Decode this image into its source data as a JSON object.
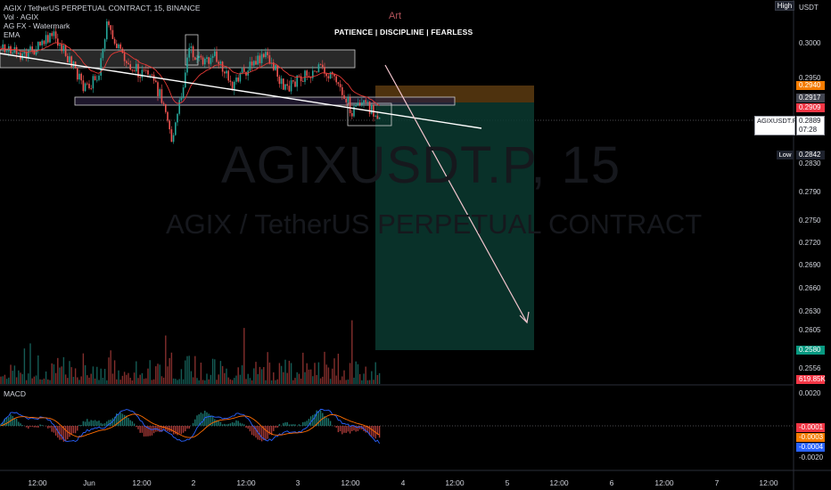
{
  "legend": {
    "line1": "AGIX / TetherUS PERPETUAL CONTRACT, 15, BINANCE",
    "line2": "Vol · AGIX",
    "line3": "AG FX - Watermark",
    "line4": "EMA"
  },
  "banner": {
    "brand": "Art",
    "motto": "PATIENCE  |  DISCIPLINE  |  FEARLESS"
  },
  "watermark": {
    "symbol": "AGIXUSDT.P, 15",
    "name": "AGIX / TetherUS PERPETUAL CONTRACT"
  },
  "corner": {
    "mode": "High",
    "currency": "USDT"
  },
  "price_axis": {
    "ticks": [
      "0.3000",
      "0.2950",
      "0.2830",
      "0.2790",
      "0.2750",
      "0.2720",
      "0.2690",
      "0.2660",
      "0.2630",
      "0.2605",
      "0.2556"
    ],
    "tags": {
      "stop": "0.2940",
      "entry": "0.2917",
      "last_red": "0.2909",
      "current": "0.2889",
      "countdown": "07:28",
      "low": "0.2842",
      "target": "0.2580",
      "volume": "619.85K"
    },
    "symbol_label": "AGIXUSDT.P",
    "low_label": "Low"
  },
  "macd_panel": {
    "title": "MACD",
    "ticks": [
      "0.0020",
      "-0.0020"
    ],
    "tags": [
      "-0.0001",
      "-0.0003",
      "-0.0004"
    ]
  },
  "time_axis": [
    "12:00",
    "Jun",
    "12:00",
    "2",
    "12:00",
    "3",
    "12:00",
    "4",
    "12:00",
    "5",
    "12:00",
    "6",
    "12:00",
    "7",
    "12:00"
  ],
  "colors": {
    "background": "#000000",
    "up": "#26a69a",
    "down": "#ef5350",
    "target_zone": "#0a3a30",
    "stop_zone": "#5c3b10",
    "macd_line": "#2962ff",
    "signal_line": "#ff6d00"
  }
}
